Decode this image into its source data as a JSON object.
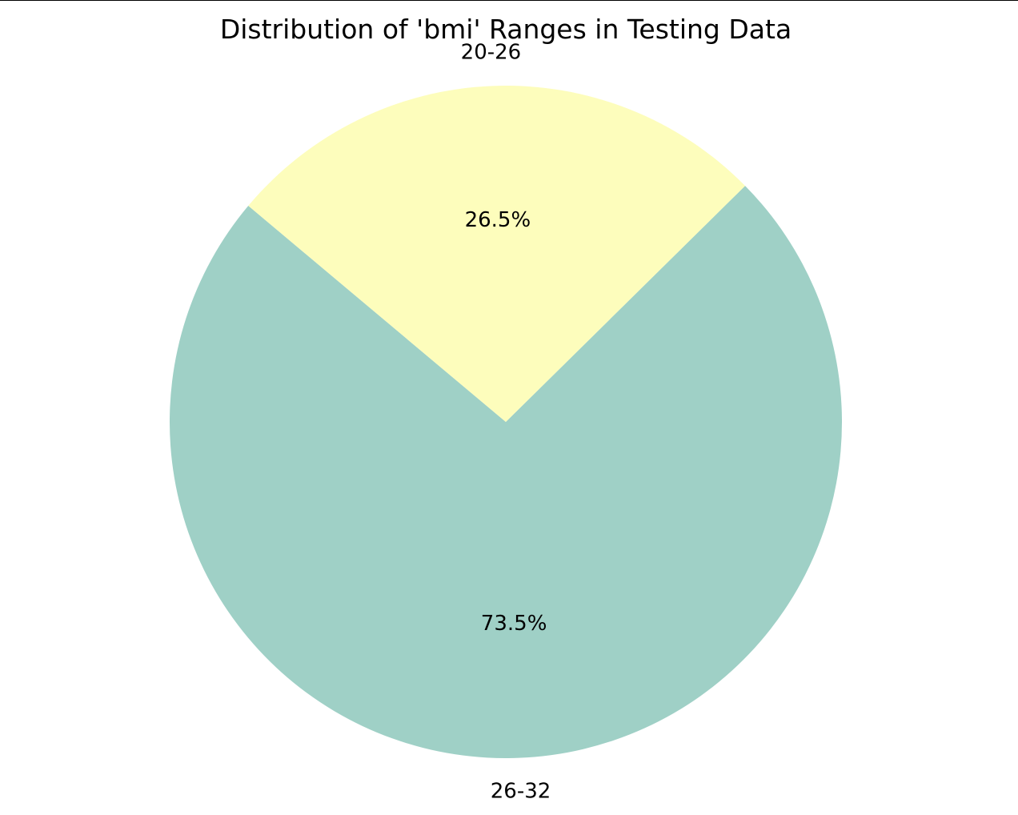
{
  "chart_data": {
    "type": "pie",
    "title": "Distribution of 'bmi' Ranges in Testing Data",
    "categories": [
      "26-32",
      "20-26"
    ],
    "values": [
      73.5,
      26.5
    ],
    "value_labels": [
      "73.5%",
      "26.5%"
    ],
    "colors": [
      "#9fd0c6",
      "#fdfdbc"
    ],
    "start_angle_deg": 140,
    "direction": "counterclockwise",
    "legend": "none"
  }
}
